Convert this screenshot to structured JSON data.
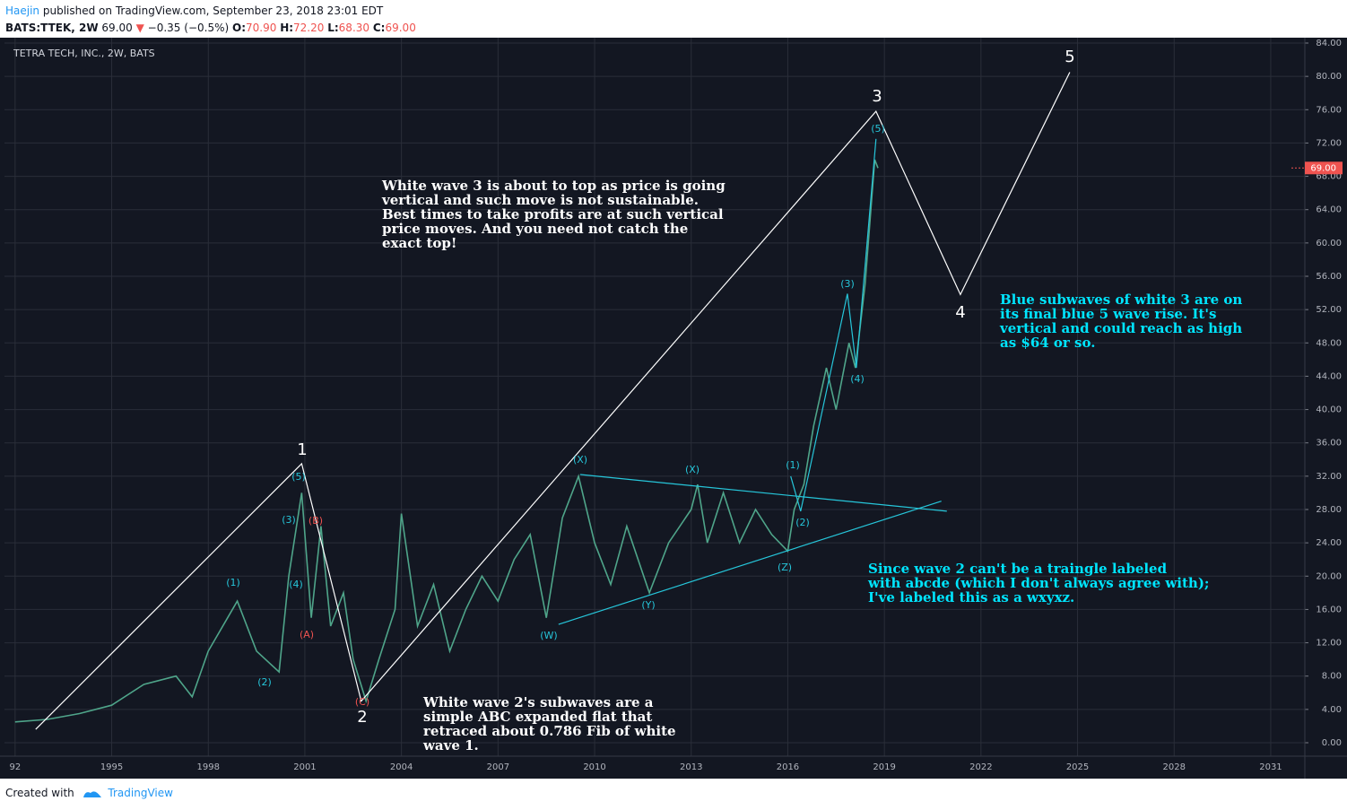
{
  "header": {
    "author": "Haejin",
    "published": "published on TradingView.com, September 23, 2018 23:01 EDT",
    "symbol": "BATS:TTEK, 2W",
    "last": "69.00",
    "arrow": "▼",
    "change": "−0.35 (−0.5%)",
    "o_label": "O:",
    "o": "70.90",
    "h_label": "H:",
    "h": "72.20",
    "l_label": "L:",
    "l": "68.30",
    "c_label": "C:",
    "c": "69.00"
  },
  "chart_data": {
    "type": "line",
    "title": "TETRA TECH, INC., 2W, BATS",
    "xlim": [
      1991.67,
      2032.06
    ],
    "xticks": [
      {
        "value": 1992,
        "label": "92"
      },
      1995,
      1998,
      2001,
      2004,
      2007,
      2010,
      2013,
      2016,
      2019,
      2022,
      2025,
      2028,
      2031
    ],
    "ylim": [
      0,
      84
    ],
    "yticks": [
      {
        "value": 0,
        "label": "0.00"
      },
      {
        "value": 4,
        "label": "4.00"
      },
      {
        "value": 8,
        "label": "8.00"
      },
      {
        "value": 12,
        "label": "12.00"
      },
      {
        "value": 16,
        "label": "16.00"
      },
      {
        "value": 20,
        "label": "20.00"
      },
      {
        "value": 24,
        "label": "24.00"
      },
      {
        "value": 28,
        "label": "28.00"
      },
      {
        "value": 32,
        "label": "32.00"
      },
      {
        "value": 36,
        "label": "36.00"
      },
      {
        "value": 40,
        "label": "40.00"
      },
      {
        "value": 44,
        "label": "44.00"
      },
      {
        "value": 48,
        "label": "48.00"
      },
      {
        "value": 52,
        "label": "52.00"
      },
      {
        "value": 56,
        "label": "56.00"
      },
      {
        "value": 60,
        "label": "60.00"
      },
      {
        "value": 64,
        "label": "64.00"
      },
      {
        "value": 68,
        "label": "68.00"
      },
      {
        "value": 72,
        "label": "72.00"
      },
      {
        "value": 76,
        "label": "76.00"
      },
      {
        "value": 80,
        "label": "80.00"
      },
      {
        "value": 84,
        "label": "84.00"
      }
    ],
    "grid": true,
    "last_price": {
      "value": 69,
      "label": "69.00",
      "color": "#ef5350"
    },
    "series": [
      {
        "color": "#4fa58a",
        "x": [
          1992.0,
          1993.0,
          1994.0,
          1995.0,
          1996.0,
          1997.0,
          1997.5,
          1998.0,
          1998.9,
          1999.5,
          2000.2,
          2000.5,
          2000.9,
          2001.2,
          2001.5,
          2001.8,
          2002.2,
          2002.5,
          2002.9,
          2003.3,
          2003.8,
          2004.0,
          2004.5,
          2005.0,
          2005.5,
          2006.0,
          2006.5,
          2007.0,
          2007.5,
          2008.0,
          2008.5,
          2009.0,
          2009.5,
          2010.0,
          2010.5,
          2011.0,
          2011.7,
          2012.3,
          2013.0,
          2013.2,
          2013.5,
          2014.0,
          2014.5,
          2015.0,
          2015.5,
          2016.0,
          2016.2,
          2016.5,
          2016.8,
          2017.2,
          2017.5,
          2017.9,
          2018.1,
          2018.4,
          2018.7,
          2018.8
        ],
        "values": [
          2.5,
          2.8,
          3.5,
          4.5,
          7,
          8,
          5.5,
          11,
          17,
          11,
          8.5,
          20,
          30,
          15,
          26,
          14,
          18,
          10,
          5,
          10,
          16,
          27.5,
          14,
          19,
          11,
          16,
          20,
          17,
          22,
          25,
          15,
          27,
          32,
          24,
          19,
          26,
          18,
          24,
          28,
          31,
          24,
          30,
          24,
          28,
          25,
          23,
          28,
          31,
          38,
          45,
          40,
          48,
          45,
          55,
          70,
          69
        ]
      },
      {
        "color": "#ffffff",
        "x": [
          1992.64,
          2000.9,
          2002.75,
          2018.74,
          2021.36,
          2024.76
        ],
        "values": [
          1.6,
          33.5,
          5,
          75.8,
          53.8,
          80.5
        ]
      },
      {
        "color": "#26c6da",
        "x": [
          2009.55,
          2020.94
        ],
        "values": [
          32.2,
          27.8
        ]
      },
      {
        "color": "#26c6da",
        "x": [
          2008.88,
          2020.77
        ],
        "values": [
          14.2,
          29
        ]
      },
      {
        "color": "#26c6da",
        "x": [
          2016.09,
          2016.4,
          2017.85,
          2018.13,
          2018.74
        ],
        "values": [
          32,
          27.8,
          53.9,
          45,
          72.5
        ]
      }
    ]
  },
  "annotations": {
    "waves": [
      "1",
      "2",
      "3",
      "4",
      "5"
    ],
    "cyan": [
      "(5)",
      "(3)",
      "(1)",
      "(4)",
      "(2)",
      "(W)",
      "(X)",
      "(Y)",
      "(X)",
      "(Z)",
      "(1)",
      "(2)",
      "(3)",
      "(4)",
      "(5)"
    ],
    "red": [
      "(B)",
      "(A)",
      "(C)"
    ],
    "note1": [
      "White wave 3 is about to top as price is going",
      "vertical and such move is not sustainable.",
      "Best times to take profits are at such vertical",
      "price moves. And you need not catch the",
      "exact top!"
    ],
    "note2": [
      "Blue subwaves of white 3 are on",
      "its final blue 5 wave rise. It's",
      "vertical and could reach as high",
      "as $64 or so."
    ],
    "note3": [
      "Since wave 2 can't be a traingle labeled",
      "with abcde (which I don't always agree with);",
      "I've labeled this as a wxyxz."
    ],
    "note4": [
      "White wave 2's subwaves are a",
      "simple ABC expanded flat that",
      "retraced about 0.786 Fib of white",
      "wave 1."
    ]
  },
  "footer": {
    "created": "Created with",
    "brand": "TradingView"
  }
}
